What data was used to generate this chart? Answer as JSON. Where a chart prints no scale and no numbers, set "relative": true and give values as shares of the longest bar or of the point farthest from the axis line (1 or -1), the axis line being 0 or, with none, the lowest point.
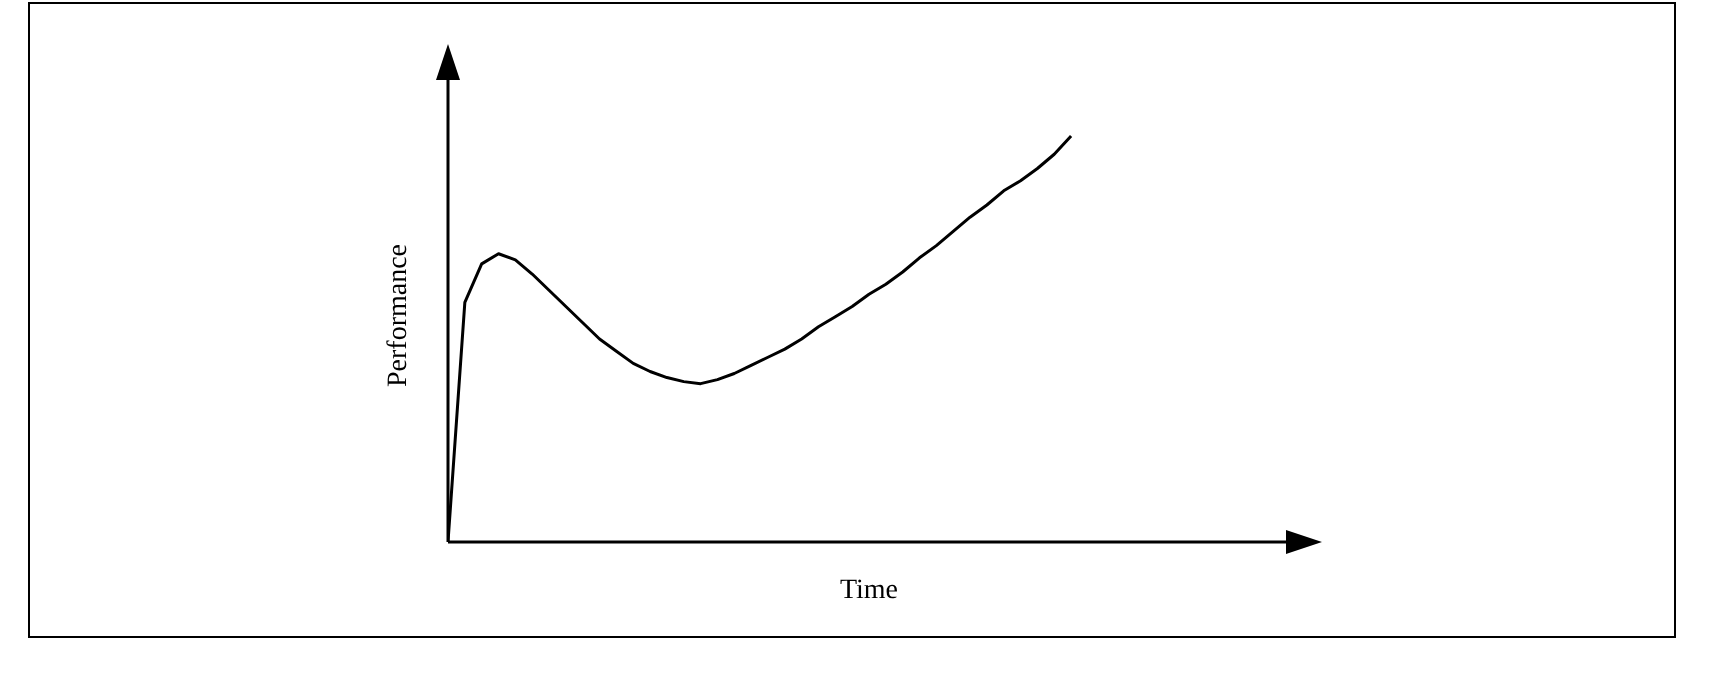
{
  "chart_data": {
    "type": "line",
    "xlabel": "Time",
    "ylabel": "Performance",
    "relative": true,
    "grid": false,
    "legend": false,
    "marker": "none",
    "line_style": "solid",
    "categories": [
      null,
      null,
      null,
      null,
      null,
      null,
      null,
      null,
      null,
      null,
      null,
      null,
      null,
      null,
      null,
      null,
      null,
      null,
      null,
      null,
      null,
      null,
      null,
      null,
      null,
      null,
      null,
      null,
      null,
      null,
      null,
      null,
      null,
      null,
      null,
      null,
      null,
      null,
      null,
      null,
      null,
      null,
      null,
      null,
      null,
      null,
      null,
      null,
      null,
      null,
      null
    ],
    "series": [
      {
        "color": "#000000",
        "values": [
          0,
          0.59,
          0.685,
          0.71,
          0.695,
          0.66,
          0.62,
          0.58,
          0.54,
          0.5,
          0.47,
          0.44,
          0.42,
          0.405,
          0.395,
          0.39,
          0.4,
          0.415,
          0.435,
          0.455,
          0.475,
          0.5,
          0.53,
          0.555,
          0.58,
          0.61,
          0.635,
          0.665,
          0.7,
          0.73,
          0.765,
          0.8,
          0.83,
          0.865,
          0.89,
          0.92,
          0.955,
          1,
          null,
          null,
          null,
          null,
          null,
          null,
          null,
          null,
          null,
          null,
          null,
          null,
          null
        ]
      }
    ]
  }
}
